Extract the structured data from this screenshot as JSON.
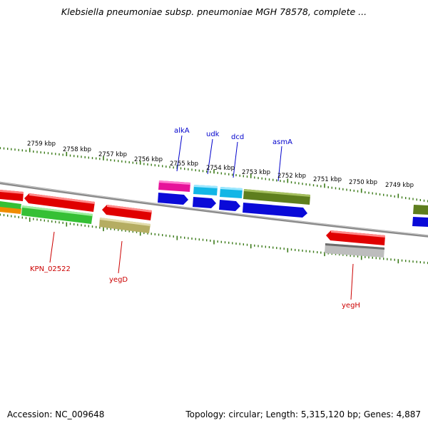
{
  "title": "Klebsiella pneumoniae subsp. pneumoniae MGH 78578, complete ...",
  "colors": {
    "tick": "#3a7a18",
    "backbone": "#888888",
    "label_top": "#0000cc",
    "label_bottom": "#cc0000"
  },
  "ruler": {
    "ticks": [
      "2759 kbp",
      "2758 kbp",
      "2757 kbp",
      "2756 kbp",
      "2755 kbp",
      "2754 kbp",
      "2753 kbp",
      "2752 kbp",
      "2751 kbp",
      "2750 kbp",
      "2749 kbp"
    ]
  },
  "gene_labels": {
    "top": [
      "alkA",
      "udk",
      "dcd",
      "asmA"
    ],
    "bottom": [
      "KPN_02522",
      "yegD",
      "yegH"
    ]
  },
  "footer": {
    "accession": "Accession: NC_009648",
    "summary": "Topology: circular; Length: 5,315,120 bp; Genes: 4,887"
  }
}
